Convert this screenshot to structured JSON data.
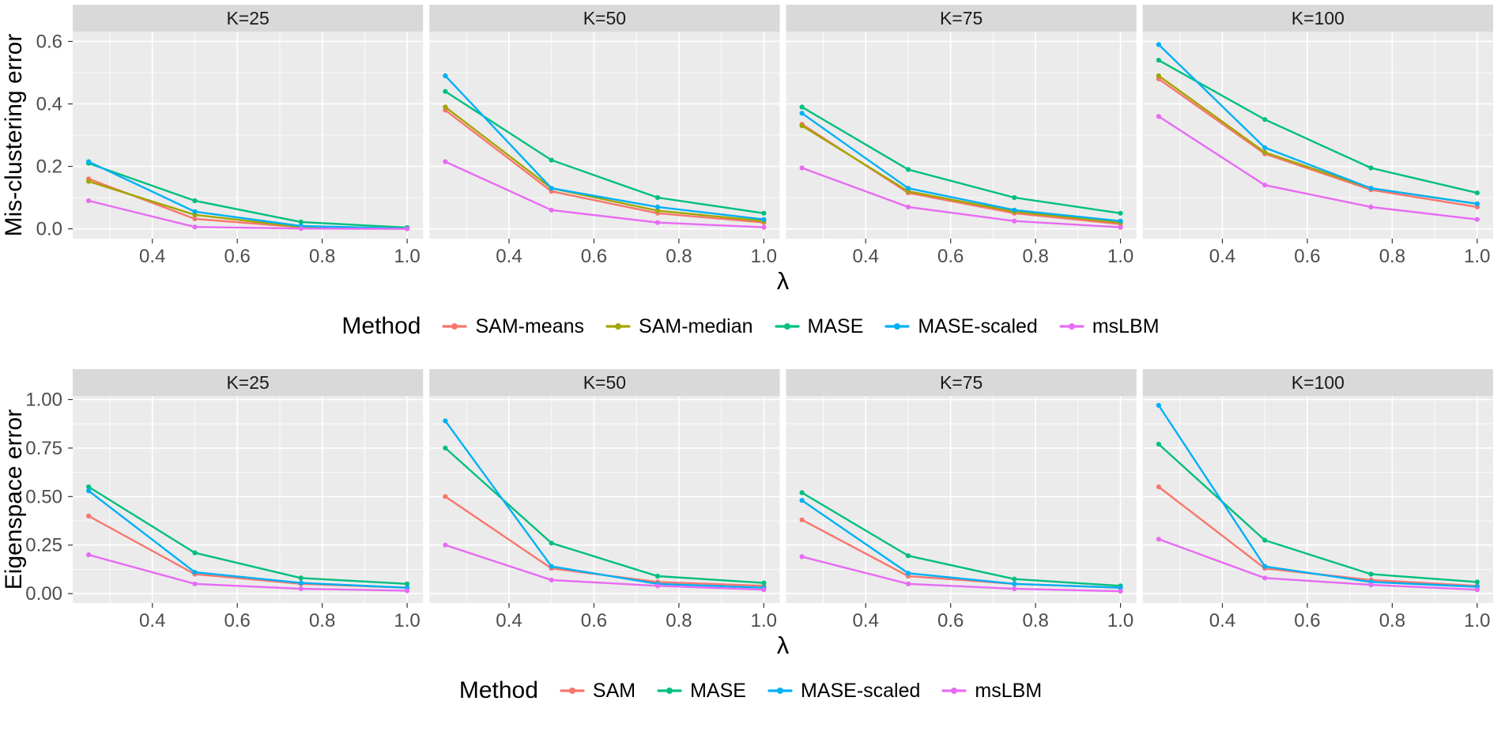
{
  "theme": {
    "panel_bg": "#EBEBEB",
    "strip_bg": "#D9D9D9",
    "grid": "#FFFFFF",
    "tick_text": "#4D4D4D",
    "strip_text": "#1A1A1A",
    "axis_title_text": "#000000",
    "tick_mark": "#333333"
  },
  "chart_data": [
    {
      "type": "line",
      "name": "misclustering-error",
      "ylabel": "Mis-clustering error",
      "xlabel": "λ",
      "legend_title": "Method",
      "legend_position": "bottom",
      "grid": true,
      "x": [
        0.25,
        0.5,
        0.75,
        1.0
      ],
      "xlim": [
        0.2125,
        1.0375
      ],
      "ylim": [
        -0.0315,
        0.6315
      ],
      "xticks": {
        "major": [
          0.4,
          0.6,
          0.8,
          1.0
        ],
        "minor": [
          0.3,
          0.5,
          0.7,
          0.9
        ],
        "labels": [
          "0.4",
          "0.6",
          "0.8",
          "1.0"
        ]
      },
      "yticks": {
        "major": [
          0.0,
          0.2,
          0.4,
          0.6
        ],
        "minor": [
          0.1,
          0.3,
          0.5
        ],
        "labels": [
          "0.0",
          "0.2",
          "0.4",
          "0.6"
        ]
      },
      "series": [
        {
          "name": "SAM-means",
          "color": "#F8766D"
        },
        {
          "name": "SAM-median",
          "color": "#A3A500"
        },
        {
          "name": "MASE",
          "color": "#00BF7D"
        },
        {
          "name": "MASE-scaled",
          "color": "#00B0F6"
        },
        {
          "name": "msLBM",
          "color": "#E76BF3"
        }
      ],
      "facets": [
        {
          "label": "K=25",
          "values": {
            "SAM-means": [
              0.16,
              0.032,
              0.005,
              0.001
            ],
            "SAM-median": [
              0.152,
              0.045,
              0.006,
              0.001
            ],
            "MASE": [
              0.21,
              0.09,
              0.022,
              0.004
            ],
            "MASE-scaled": [
              0.215,
              0.055,
              0.009,
              0.001
            ],
            "msLBM": [
              0.09,
              0.006,
              0.001,
              0.0
            ]
          }
        },
        {
          "label": "K=50",
          "values": {
            "SAM-means": [
              0.38,
              0.12,
              0.05,
              0.02
            ],
            "SAM-median": [
              0.39,
              0.13,
              0.058,
              0.025
            ],
            "MASE": [
              0.44,
              0.22,
              0.1,
              0.05
            ],
            "MASE-scaled": [
              0.49,
              0.13,
              0.07,
              0.03
            ],
            "msLBM": [
              0.215,
              0.06,
              0.02,
              0.005
            ]
          }
        },
        {
          "label": "K=75",
          "values": {
            "SAM-means": [
              0.335,
              0.115,
              0.05,
              0.015
            ],
            "SAM-median": [
              0.33,
              0.12,
              0.055,
              0.02
            ],
            "MASE": [
              0.39,
              0.19,
              0.1,
              0.05
            ],
            "MASE-scaled": [
              0.37,
              0.13,
              0.06,
              0.025
            ],
            "msLBM": [
              0.195,
              0.07,
              0.025,
              0.005
            ]
          }
        },
        {
          "label": "K=100",
          "values": {
            "SAM-means": [
              0.48,
              0.24,
              0.125,
              0.07
            ],
            "SAM-median": [
              0.49,
              0.245,
              0.13,
              0.08
            ],
            "MASE": [
              0.54,
              0.35,
              0.195,
              0.115
            ],
            "MASE-scaled": [
              0.59,
              0.26,
              0.13,
              0.08
            ],
            "msLBM": [
              0.36,
              0.14,
              0.07,
              0.03
            ]
          }
        }
      ]
    },
    {
      "type": "line",
      "name": "eigenspace-error",
      "ylabel": "Eigenspace error",
      "xlabel": "λ",
      "legend_title": "Method",
      "legend_position": "bottom",
      "grid": true,
      "x": [
        0.25,
        0.5,
        0.75,
        1.0
      ],
      "xlim": [
        0.2125,
        1.0375
      ],
      "ylim": [
        -0.0485,
        1.0185
      ],
      "xticks": {
        "major": [
          0.4,
          0.6,
          0.8,
          1.0
        ],
        "minor": [
          0.3,
          0.5,
          0.7,
          0.9
        ],
        "labels": [
          "0.4",
          "0.6",
          "0.8",
          "1.0"
        ]
      },
      "yticks": {
        "major": [
          0.0,
          0.25,
          0.5,
          0.75,
          1.0
        ],
        "minor": [
          0.125,
          0.375,
          0.625,
          0.875
        ],
        "labels": [
          "0.00",
          "0.25",
          "0.50",
          "0.75",
          "1.00"
        ]
      },
      "series": [
        {
          "name": "SAM",
          "color": "#F8766D"
        },
        {
          "name": "MASE",
          "color": "#00BF7D"
        },
        {
          "name": "MASE-scaled",
          "color": "#00B0F6"
        },
        {
          "name": "msLBM",
          "color": "#E76BF3"
        }
      ],
      "facets": [
        {
          "label": "K=25",
          "values": {
            "SAM": [
              0.4,
              0.1,
              0.05,
              0.03
            ],
            "MASE": [
              0.55,
              0.21,
              0.08,
              0.05
            ],
            "MASE-scaled": [
              0.53,
              0.11,
              0.055,
              0.03
            ],
            "msLBM": [
              0.2,
              0.05,
              0.025,
              0.015
            ]
          }
        },
        {
          "label": "K=50",
          "values": {
            "SAM": [
              0.5,
              0.13,
              0.06,
              0.04
            ],
            "MASE": [
              0.75,
              0.26,
              0.09,
              0.055
            ],
            "MASE-scaled": [
              0.89,
              0.14,
              0.05,
              0.03
            ],
            "msLBM": [
              0.25,
              0.07,
              0.04,
              0.02
            ]
          }
        },
        {
          "label": "K=75",
          "values": {
            "SAM": [
              0.38,
              0.09,
              0.05,
              0.03
            ],
            "MASE": [
              0.52,
              0.195,
              0.075,
              0.04
            ],
            "MASE-scaled": [
              0.48,
              0.105,
              0.05,
              0.03
            ],
            "msLBM": [
              0.19,
              0.05,
              0.025,
              0.012
            ]
          }
        },
        {
          "label": "K=100",
          "values": {
            "SAM": [
              0.55,
              0.13,
              0.07,
              0.04
            ],
            "MASE": [
              0.77,
              0.275,
              0.1,
              0.06
            ],
            "MASE-scaled": [
              0.97,
              0.14,
              0.06,
              0.035
            ],
            "msLBM": [
              0.28,
              0.08,
              0.045,
              0.02
            ]
          }
        }
      ]
    }
  ]
}
